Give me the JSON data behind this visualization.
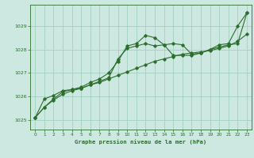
{
  "title": "Graphe pression niveau de la mer (hPa)",
  "bg_color": "#cce8e0",
  "grid_color": "#99ccbb",
  "line_color": "#2d6e2d",
  "x_ticks": [
    0,
    1,
    2,
    3,
    4,
    5,
    6,
    7,
    8,
    9,
    10,
    11,
    12,
    13,
    14,
    15,
    16,
    17,
    18,
    19,
    20,
    21,
    22,
    23
  ],
  "y_ticks": [
    1025,
    1026,
    1027,
    1028,
    1029
  ],
  "ylim": [
    1024.6,
    1029.9
  ],
  "xlim": [
    -0.5,
    23.5
  ],
  "line1": [
    1025.1,
    1025.55,
    1025.85,
    1026.1,
    1026.25,
    1026.35,
    1026.5,
    1026.6,
    1026.75,
    1026.9,
    1027.05,
    1027.2,
    1027.35,
    1027.5,
    1027.6,
    1027.7,
    1027.8,
    1027.85,
    1027.9,
    1027.95,
    1028.05,
    1028.15,
    1028.35,
    1028.65
  ],
  "line2": [
    1025.1,
    1025.55,
    1025.9,
    1026.2,
    1026.3,
    1026.4,
    1026.6,
    1026.75,
    1027.0,
    1027.5,
    1028.15,
    1028.25,
    1028.6,
    1028.5,
    1028.2,
    1028.25,
    1028.2,
    1027.8,
    1027.85,
    1028.0,
    1028.2,
    1028.25,
    1029.0,
    1029.55
  ],
  "line3": [
    1025.1,
    1025.9,
    1026.05,
    1026.25,
    1026.3,
    1026.35,
    1026.5,
    1026.65,
    1026.8,
    1027.6,
    1028.05,
    1028.15,
    1028.25,
    1028.15,
    1028.2,
    1027.75,
    1027.75,
    1027.75,
    1027.85,
    1028.0,
    1028.1,
    1028.2,
    1028.25,
    1029.55
  ]
}
